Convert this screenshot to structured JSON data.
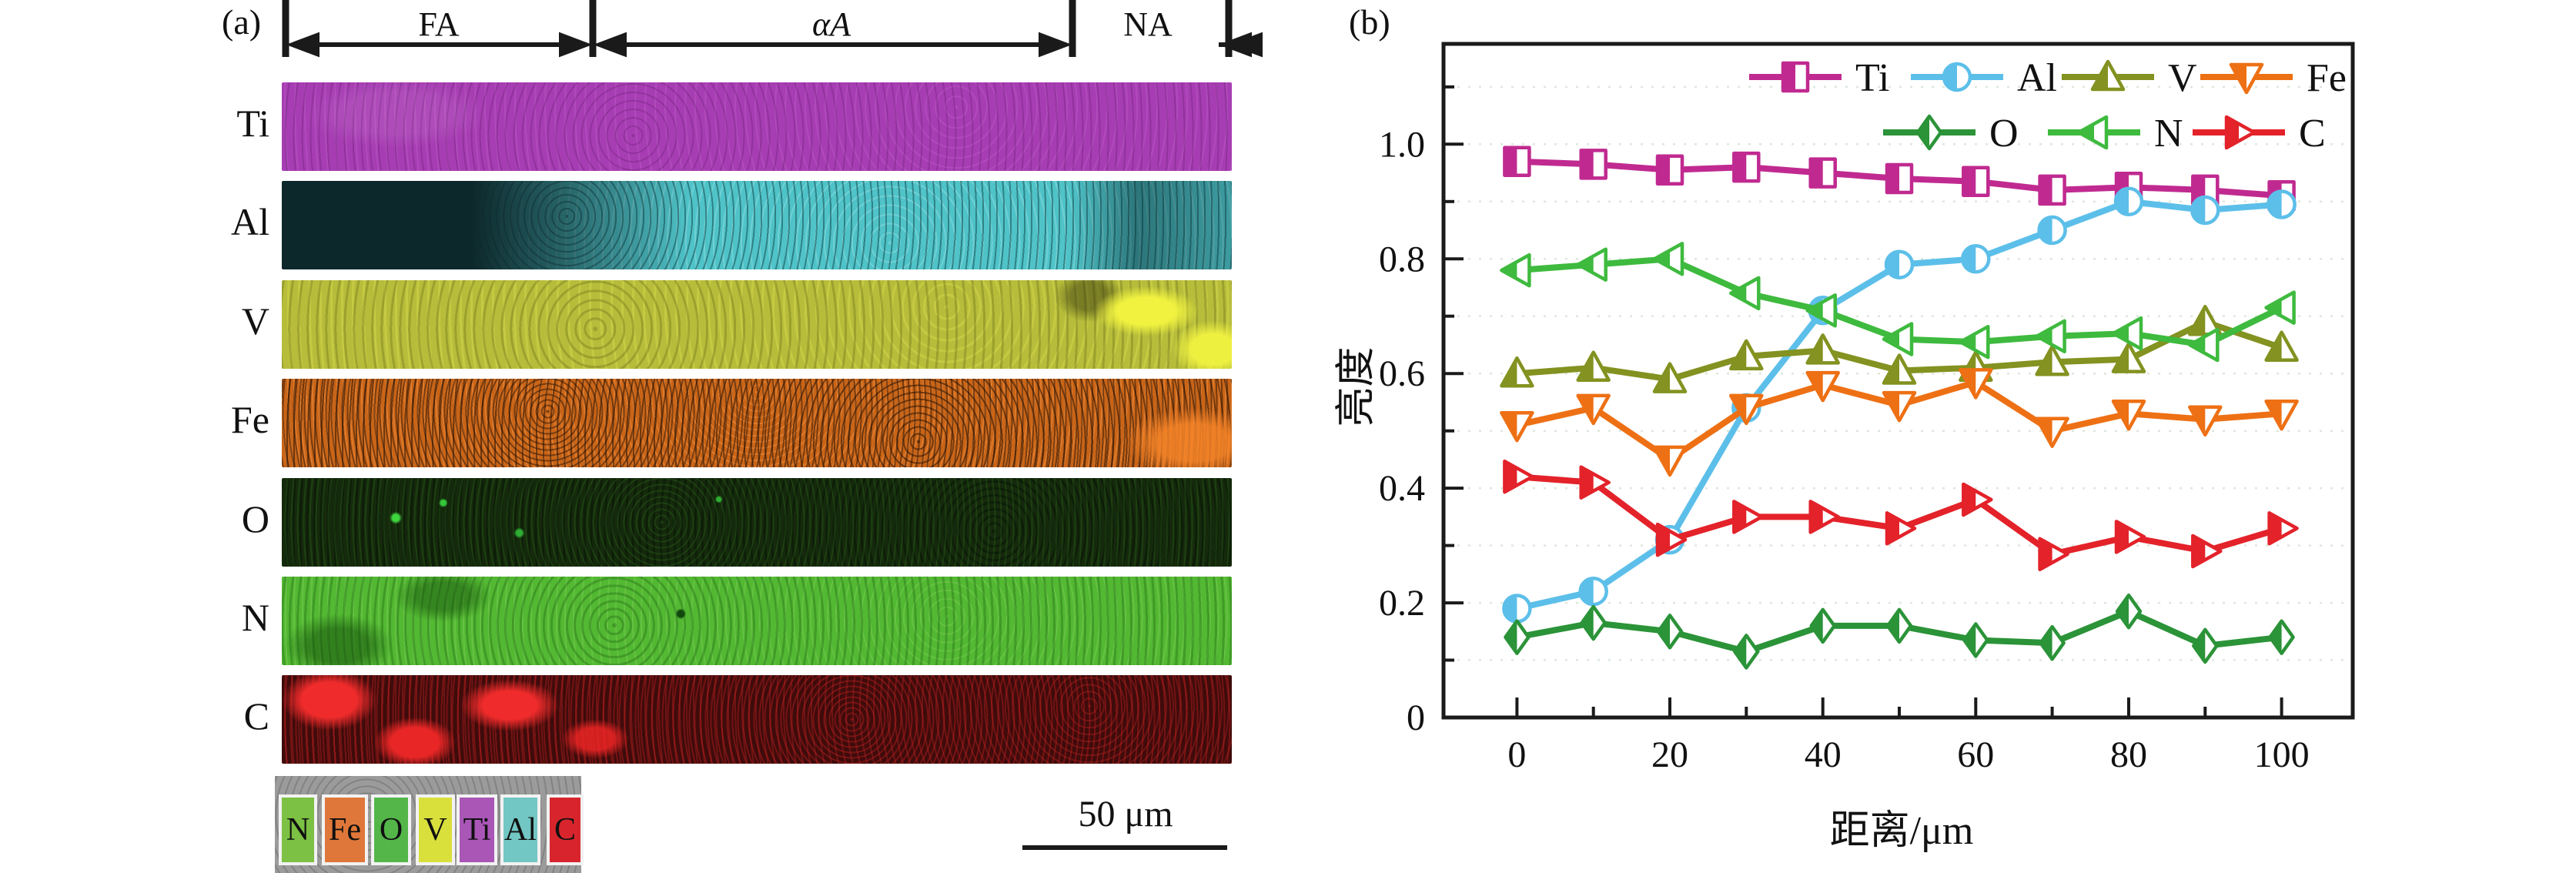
{
  "figure": {
    "panel_a": {
      "label": "(a)",
      "regions": [
        {
          "name": "FA"
        },
        {
          "name": "αA"
        },
        {
          "name": "NA"
        }
      ],
      "strips": [
        {
          "element": "Ti",
          "base_color": "#a73db3",
          "layers": [
            "radial-gradient(ellipse 160px 60px at 12% 35%, rgba(255,255,255,0.08) 0 45%, rgba(255,255,255,0) 75%)",
            "repeating-radial-gradient(circle at 37% 60%, rgba(70,12,80,0.22) 0 2px, transparent 2px 11px)",
            "repeating-radial-gradient(circle at 71% 28%, rgba(255,190,255,0.10) 0 2px, transparent 2px 13px)"
          ]
        },
        {
          "element": "Al",
          "base_color": "#4fc3c8",
          "layers": [
            "linear-gradient(90deg, #0d282b 0%, #0d282b 20%, rgba(13,40,43,0.6) 30%, rgba(13,40,43,0) 43%)",
            "linear-gradient(90deg, rgba(9,42,45,0) 83%, rgba(9,42,45,0.5) 90%, rgba(9,42,45,0.25) 100%)",
            "repeating-radial-gradient(circle at 30% 40%, rgba(8,50,55,0.45) 0 2px, transparent 2px 9px)",
            "repeating-radial-gradient(circle at 64% 70%, rgba(225,255,255,0.22) 0 2px, transparent 2px 12px)"
          ]
        },
        {
          "element": "V",
          "base_color": "#b7bd3a",
          "layers": [
            "radial-gradient(ellipse 95px 45px at 91% 35%, #f0f23f 0 40%, rgba(240,242,63,0) 72%)",
            "radial-gradient(ellipse 70px 50px at 98% 78%, #eef040 0 40%, rgba(240,242,63,0) 75%)",
            "radial-gradient(ellipse 60px 45px at 85% 18%, rgba(45,45,10,0.45) 0 40%, rgba(45,45,10,0) 75%)",
            "repeating-radial-gradient(circle at 33% 55%, rgba(95,100,22,0.32) 0 3px, transparent 3px 12px)",
            "repeating-radial-gradient(circle at 70% 30%, rgba(232,236,85,0.28) 0 3px, transparent 3px 14px)"
          ]
        },
        {
          "element": "Fe",
          "base_color": "#c96518",
          "layers": [
            "radial-gradient(ellipse 120px 60px at 96% 72%, rgba(245,132,40,0.85) 0 40%, rgba(245,132,40,0) 75%)",
            "repeating-radial-gradient(circle at 28% 37%, rgba(40,18,4,0.5) 0 2px, transparent 2px 7px)",
            "repeating-radial-gradient(circle at 67% 71%, rgba(22,9,2,0.5) 0 2px, transparent 2px 9px)",
            "repeating-radial-gradient(circle at 50% 15%, rgba(250,152,72,0.4) 0 2px, transparent 2px 8px)"
          ]
        },
        {
          "element": "O",
          "base_color": "#152a0c",
          "layers": [
            "radial-gradient(circle 8px at 12% 45%, #3ed63e 0 55%, rgba(62,214,62,0) 100%)",
            "radial-gradient(circle 6px at 17% 28%, #35c93a 0 55%, rgba(53,201,58,0) 100%)",
            "radial-gradient(circle 7px at 25% 62%, #2fae33 0 55%, rgba(47,174,51,0) 100%)",
            "radial-gradient(circle 5px at 46% 24%, #2fae33 0 55%, rgba(47,174,51,0) 100%)",
            "repeating-radial-gradient(circle at 40% 50%, rgba(62,150,42,0.2) 0 2px, transparent 2px 8px)",
            "repeating-radial-gradient(circle at 75% 60%, rgba(8,22,5,0.6) 0 3px, transparent 3px 9px)"
          ]
        },
        {
          "element": "N",
          "base_color": "#53b832",
          "layers": [
            "radial-gradient(ellipse 95px 55px at 6% 78%, rgba(16,72,9,0.5) 0 40%, rgba(16,72,9,0) 75%)",
            "radial-gradient(ellipse 85px 45px at 17% 22%, rgba(16,72,9,0.45) 0 40%, rgba(16,72,9,0) 75%)",
            "radial-gradient(circle 7px at 42% 42%, #11470d 0 60%, rgba(17,71,13,0) 100%)",
            "repeating-radial-gradient(circle at 35% 55%, rgba(22,92,13,0.32) 0 3px, transparent 3px 10px)",
            "repeating-radial-gradient(circle at 70% 45%, rgba(165,232,125,0.22) 0 2px, transparent 2px 11px)"
          ]
        },
        {
          "element": "C",
          "base_color": "#3f0b0b",
          "layers": [
            "radial-gradient(ellipse 75px 48px at 5% 28%, #ef2b2b 0 48%, rgba(239,43,43,0) 82%)",
            "radial-gradient(ellipse 65px 40px at 14% 76%, #e82626 0 48%, rgba(232,38,38,0) 82%)",
            "radial-gradient(ellipse 80px 42px at 24% 34%, #ef2b2b 0 44%, rgba(239,43,43,0) 80%)",
            "radial-gradient(ellipse 55px 32px at 33% 72%, rgba(236,36,36,0.85) 0 45%, rgba(236,36,36,0) 80%)",
            "repeating-radial-gradient(circle at 60% 50%, rgba(205,32,32,0.38) 0 2px, transparent 2px 7px)",
            "repeating-radial-gradient(circle at 85% 35%, rgba(232,42,42,0.28) 0 2px, transparent 2px 9px)"
          ]
        }
      ],
      "eds_legend": {
        "background_color": "#9b9b9b",
        "boxes": [
          {
            "label": "N",
            "color": "#7cc143"
          },
          {
            "label": "Fe",
            "color": "#e0773a"
          },
          {
            "label": "O",
            "color": "#54b649"
          },
          {
            "label": "V",
            "color": "#d9e03c"
          },
          {
            "label": "Ti",
            "color": "#a956b7"
          },
          {
            "label": "Al",
            "color": "#72c6c3"
          },
          {
            "label": "C",
            "color": "#d8252d"
          }
        ]
      },
      "scale_bar": {
        "label": "50 μm"
      }
    },
    "panel_b": {
      "label": "(b)",
      "ylabel": "亮度",
      "xlabel": "距离/μm"
    }
  },
  "chart_data": {
    "type": "line",
    "title": "",
    "xlabel": "距离/μm",
    "ylabel": "亮度",
    "x": [
      0,
      10,
      20,
      30,
      40,
      50,
      60,
      70,
      80,
      90,
      100
    ],
    "series": [
      {
        "name": "Ti",
        "color": "#c02a90",
        "marker": "square",
        "values": [
          0.97,
          0.965,
          0.955,
          0.96,
          0.95,
          0.94,
          0.935,
          0.92,
          0.925,
          0.92,
          0.91
        ]
      },
      {
        "name": "Al",
        "color": "#5cbfe9",
        "marker": "circle",
        "values": [
          0.19,
          0.22,
          0.31,
          0.54,
          0.71,
          0.79,
          0.8,
          0.85,
          0.9,
          0.885,
          0.895
        ]
      },
      {
        "name": "V",
        "color": "#839220",
        "marker": "triangle-up",
        "values": [
          0.6,
          0.61,
          0.59,
          0.63,
          0.64,
          0.605,
          0.61,
          0.62,
          0.625,
          0.69,
          0.645
        ]
      },
      {
        "name": "Fe",
        "color": "#ee7014",
        "marker": "triangle-down",
        "values": [
          0.51,
          0.54,
          0.45,
          0.54,
          0.58,
          0.545,
          0.585,
          0.5,
          0.53,
          0.52,
          0.53
        ]
      },
      {
        "name": "O",
        "color": "#2b9338",
        "marker": "diamond",
        "values": [
          0.14,
          0.165,
          0.15,
          0.115,
          0.16,
          0.16,
          0.135,
          0.13,
          0.185,
          0.125,
          0.14
        ]
      },
      {
        "name": "N",
        "color": "#3eba3e",
        "marker": "triangle-left",
        "values": [
          0.78,
          0.79,
          0.8,
          0.74,
          0.71,
          0.66,
          0.655,
          0.665,
          0.67,
          0.65,
          0.715
        ]
      },
      {
        "name": "C",
        "color": "#e3222a",
        "marker": "triangle-right",
        "values": [
          0.42,
          0.41,
          0.31,
          0.35,
          0.35,
          0.33,
          0.38,
          0.285,
          0.315,
          0.29,
          0.33
        ]
      }
    ],
    "xlim": [
      -9.6,
      109.3
    ],
    "ylim": [
      0,
      1.175
    ],
    "x_ticks": [
      0,
      20,
      40,
      60,
      80,
      100
    ],
    "x_tick_labels": [
      "0",
      "20",
      "40",
      "60",
      "80",
      "100"
    ],
    "x_minor_ticks": [
      10,
      30,
      50,
      70,
      90
    ],
    "y_ticks": [
      0,
      0.2,
      0.4,
      0.6,
      0.8,
      1.0
    ],
    "y_tick_labels": [
      "0",
      "0.2",
      "0.4",
      "0.6",
      "0.8",
      "1.0"
    ],
    "y_minor_ticks": [
      0.1,
      0.3,
      0.5,
      0.7,
      0.9,
      1.1
    ],
    "grid": {
      "horizontal_dotted_every": 0.1,
      "color": "#dce8dc"
    },
    "legend_rows": [
      [
        "Ti",
        "Al",
        "V",
        "Fe"
      ],
      [
        "O",
        "N",
        "C"
      ]
    ],
    "legend_position": "top-right-inside"
  }
}
